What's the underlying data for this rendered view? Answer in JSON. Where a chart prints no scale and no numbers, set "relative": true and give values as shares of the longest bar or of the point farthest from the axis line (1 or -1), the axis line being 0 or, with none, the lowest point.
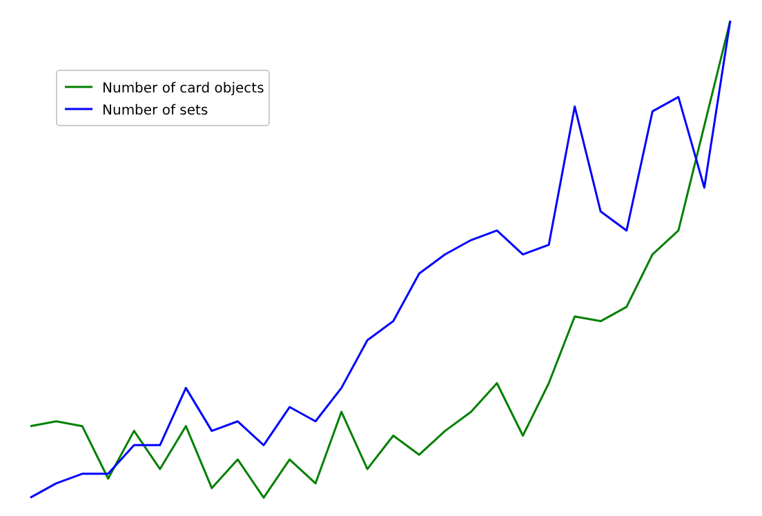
{
  "chart_data": {
    "type": "line",
    "relative": true,
    "legend": "top left",
    "categories": [
      null,
      null,
      null,
      null,
      null,
      null,
      null,
      null,
      null,
      null,
      null,
      null,
      null,
      null,
      null,
      null,
      null,
      null,
      null,
      null,
      null,
      null,
      null,
      null,
      null,
      null,
      null,
      null
    ],
    "series": [
      {
        "name": "Number of card objects",
        "color": "#008000",
        "values": [
          0.15,
          0.16,
          0.15,
          0.04,
          0.14,
          0.06,
          0.15,
          0.02,
          0.08,
          0,
          0.08,
          0.03,
          0.18,
          0.06,
          0.13,
          0.09,
          0.14,
          0.18,
          0.24,
          0.13,
          0.24,
          0.38,
          0.37,
          0.4,
          0.51,
          0.56,
          0.78,
          1
        ]
      },
      {
        "name": "Number of sets",
        "color": "#0000ff",
        "values": [
          0,
          0.03,
          0.05,
          0.05,
          0.11,
          0.11,
          0.23,
          0.14,
          0.16,
          0.11,
          0.19,
          0.16,
          0.23,
          0.33,
          0.37,
          0.47,
          0.51,
          0.54,
          0.56,
          0.51,
          0.53,
          0.82,
          0.6,
          0.56,
          0.81,
          0.84,
          0.65,
          1
        ]
      }
    ]
  }
}
